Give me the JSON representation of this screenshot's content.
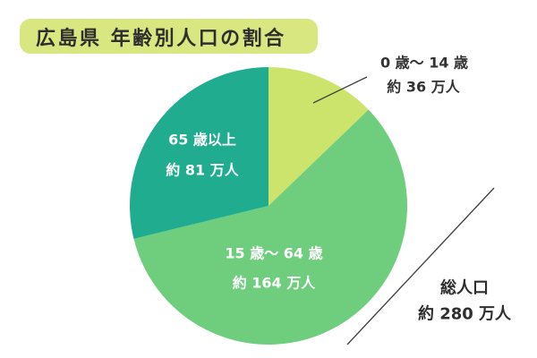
{
  "chart_data": {
    "type": "pie",
    "title": "広島県 年齢別人口の割合",
    "slices": [
      {
        "label": "0 歳〜 14 歳",
        "value": 36,
        "value_label": "約 36 万人",
        "color": "#cde46c"
      },
      {
        "label": "15 歳〜 64 歳",
        "value": 164,
        "value_label": "約 164 万人",
        "color": "#6fce7d"
      },
      {
        "label": "65 歳以上",
        "value": 81,
        "value_label": "約 81 万人",
        "color": "#20ac8e"
      }
    ],
    "total": {
      "label": "総人口",
      "value_label": "約 280 万人"
    }
  },
  "colors": {
    "title_background": "#d8e77f"
  }
}
